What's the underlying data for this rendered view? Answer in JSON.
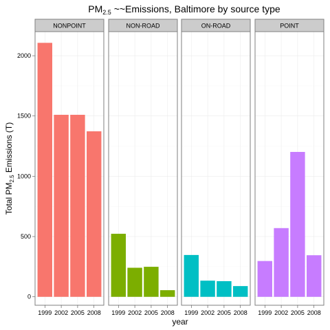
{
  "chart_data": {
    "type": "bar",
    "title_main": "PM",
    "title_sub": "2.5",
    "title_rest": " ~~Emissions, Baltimore by source type",
    "xlabel": "year",
    "ylabel_main": "Total PM",
    "ylabel_sub": "2.5",
    "ylabel_rest": " Emissions (T)",
    "ylim": [
      -70,
      2200
    ],
    "yticks": [
      "0",
      "500",
      "1000",
      "1500",
      "2000"
    ],
    "categories": [
      "1999",
      "2002",
      "2005",
      "2008"
    ],
    "grid": true,
    "legend": "none",
    "panels": [
      {
        "name": "NONPOINT",
        "color": "#F8766D",
        "values": [
          2107,
          1510,
          1510,
          1373
        ]
      },
      {
        "name": "NON-ROAD",
        "color": "#7CAE00",
        "values": [
          523,
          241,
          249,
          55
        ]
      },
      {
        "name": "ON-ROAD",
        "color": "#00BFC4",
        "values": [
          347,
          134,
          130,
          89
        ]
      },
      {
        "name": "POINT",
        "color": "#C77CFF",
        "values": [
          297,
          570,
          1202,
          345
        ]
      }
    ]
  }
}
